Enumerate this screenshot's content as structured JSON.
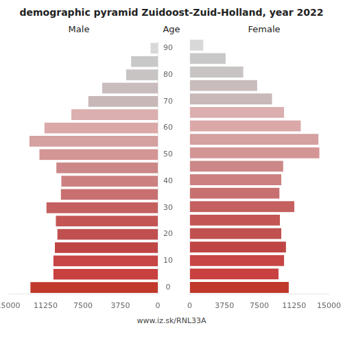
{
  "chart_data": {
    "type": "bar",
    "orientation": "horizontal",
    "title": "demographic pyramid Zuidoost-Zuid-Holland, year 2022",
    "ylabel": "Age",
    "annotations": [
      "www.iz.sk/RNL33A"
    ],
    "categories": [
      "0",
      null,
      "10",
      null,
      "20",
      null,
      "30",
      null,
      "40",
      null,
      "50",
      null,
      "60",
      null,
      "70",
      null,
      "80",
      null,
      "90"
    ],
    "series": [
      {
        "name": "Male",
        "values": [
          12800,
          10500,
          10500,
          10350,
          10100,
          10250,
          11200,
          9750,
          9700,
          10200,
          11900,
          12900,
          11400,
          8700,
          7000,
          5600,
          3200,
          2700,
          750
        ],
        "colors": [
          "#c0392b",
          "#c84040",
          "#c84545",
          "#bf4545",
          "#c05050",
          "#c45555",
          "#c46060",
          "#c87070",
          "#cc8080",
          "#cc8888",
          "#d49595",
          "#d4a0a0",
          "#dba8a8",
          "#dbafaf",
          "#c8b8b8",
          "#c8bcbc",
          "#c8c4c4",
          "#c8c8c8",
          "#d8d8d8"
        ]
      },
      {
        "name": "Female",
        "values": [
          10700,
          9600,
          10200,
          10400,
          9900,
          9750,
          11300,
          9700,
          9900,
          10100,
          14000,
          13900,
          12000,
          10200,
          8900,
          7300,
          5800,
          3900,
          1500
        ],
        "colors": [
          "#c0392b",
          "#c84040",
          "#c84545",
          "#bf4545",
          "#c05050",
          "#c45555",
          "#c46060",
          "#c87070",
          "#cc8080",
          "#cc8888",
          "#d49595",
          "#d4a0a0",
          "#dba8a8",
          "#dbafaf",
          "#c8b8b8",
          "#c8bcbc",
          "#c8c4c4",
          "#c8c8c8",
          "#d8d8d8"
        ]
      }
    ],
    "xlim": [
      0,
      15000
    ],
    "xticks": [
      0,
      3750,
      7500,
      11250,
      15000
    ],
    "grid": false
  }
}
